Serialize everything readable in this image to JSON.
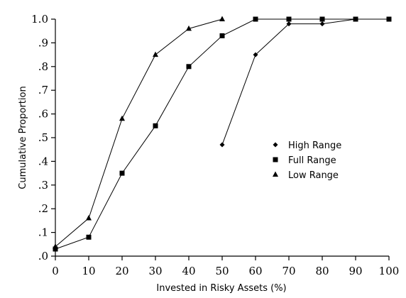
{
  "chart_data": {
    "type": "line",
    "title": "",
    "xlabel": "Invested in Risky Assets (%)",
    "ylabel": "Cumulative Proportion",
    "xlim": [
      0,
      100
    ],
    "ylim": [
      0,
      1.0
    ],
    "xticks": [
      0,
      10,
      20,
      30,
      40,
      50,
      60,
      70,
      80,
      90,
      100
    ],
    "xtick_labels": [
      "0",
      "10",
      "20",
      "30",
      "40",
      "50",
      "60",
      "70",
      "80",
      "90",
      "100"
    ],
    "yticks": [
      0,
      0.1,
      0.2,
      0.3,
      0.4,
      0.5,
      0.6,
      0.7,
      0.8,
      0.9,
      1.0
    ],
    "ytick_labels": [
      ".0",
      ".1",
      ".2",
      ".3",
      ".4",
      ".5",
      ".6",
      ".7",
      ".8",
      ".9",
      "1.0"
    ],
    "grid": false,
    "legend_position": "center-right",
    "series": [
      {
        "name": "High Range",
        "marker": "diamond",
        "x": [
          50,
          60,
          70,
          80,
          90,
          100
        ],
        "y": [
          0.47,
          0.85,
          0.98,
          0.98,
          1.0,
          1.0
        ]
      },
      {
        "name": "Full Range",
        "marker": "square",
        "x": [
          0,
          10,
          20,
          30,
          40,
          50,
          60,
          70,
          80,
          90,
          100
        ],
        "y": [
          0.03,
          0.08,
          0.35,
          0.55,
          0.8,
          0.93,
          1.0,
          1.0,
          1.0,
          1.0,
          1.0
        ]
      },
      {
        "name": "Low Range",
        "marker": "triangle",
        "x": [
          0,
          10,
          20,
          30,
          40,
          50
        ],
        "y": [
          0.04,
          0.16,
          0.58,
          0.85,
          0.96,
          1.0
        ]
      }
    ],
    "colors": {
      "line": "#000000",
      "marker": "#000000"
    }
  }
}
